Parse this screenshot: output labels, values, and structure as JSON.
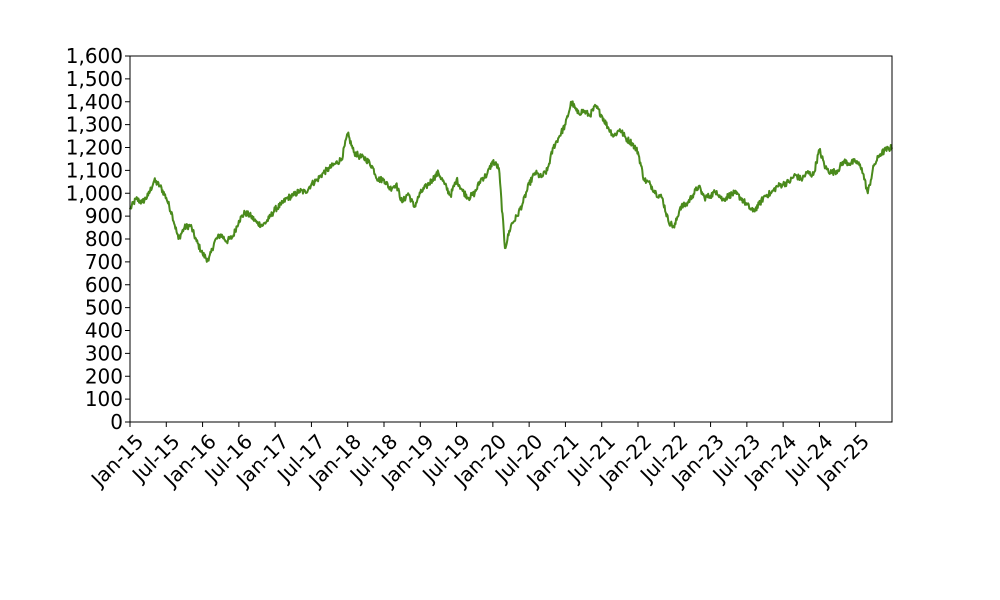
{
  "chart_data": {
    "type": "line",
    "title": "",
    "xlabel": "",
    "ylabel": "",
    "grid": false,
    "legend": "none",
    "ylim": [
      0,
      1600
    ],
    "xlim": [
      "2015-01",
      "2025-07"
    ],
    "y_ticks": [
      "0",
      "100",
      "200",
      "300",
      "400",
      "500",
      "600",
      "700",
      "800",
      "900",
      "1,000",
      "1,100",
      "1,200",
      "1,300",
      "1,400",
      "1,500",
      "1,600"
    ],
    "x_ticks": [
      {
        "date": "2015-01",
        "label": "Jan-15"
      },
      {
        "date": "2015-07",
        "label": "Jul-15"
      },
      {
        "date": "2016-01",
        "label": "Jan-16"
      },
      {
        "date": "2016-07",
        "label": "Jul-16"
      },
      {
        "date": "2017-01",
        "label": "Jan-17"
      },
      {
        "date": "2017-07",
        "label": "Jul-17"
      },
      {
        "date": "2018-01",
        "label": "Jan-18"
      },
      {
        "date": "2018-07",
        "label": "Jul-18"
      },
      {
        "date": "2019-01",
        "label": "Jan-19"
      },
      {
        "date": "2019-07",
        "label": "Jul-19"
      },
      {
        "date": "2020-01",
        "label": "Jan-20"
      },
      {
        "date": "2020-07",
        "label": "Jul-20"
      },
      {
        "date": "2021-01",
        "label": "Jan-21"
      },
      {
        "date": "2021-07",
        "label": "Jul-21"
      },
      {
        "date": "2022-01",
        "label": "Jan-22"
      },
      {
        "date": "2022-07",
        "label": "Jul-22"
      },
      {
        "date": "2023-01",
        "label": "Jan-23"
      },
      {
        "date": "2023-07",
        "label": "Jul-23"
      },
      {
        "date": "2024-01",
        "label": "Jan-24"
      },
      {
        "date": "2024-07",
        "label": "Jul-24"
      },
      {
        "date": "2025-01",
        "label": "Jan-25"
      }
    ],
    "series": [
      {
        "color": "#4a8a1c",
        "points": [
          [
            "2015-01",
            930
          ],
          [
            "2015-02",
            975
          ],
          [
            "2015-03",
            960
          ],
          [
            "2015-04",
            990
          ],
          [
            "2015-05",
            1055
          ],
          [
            "2015-06",
            1030
          ],
          [
            "2015-07",
            980
          ],
          [
            "2015-08",
            905
          ],
          [
            "2015-09",
            800
          ],
          [
            "2015-10",
            850
          ],
          [
            "2015-11",
            860
          ],
          [
            "2015-12",
            790
          ],
          [
            "2016-01",
            735
          ],
          [
            "2016-02",
            705
          ],
          [
            "2016-03",
            790
          ],
          [
            "2016-04",
            820
          ],
          [
            "2016-05",
            790
          ],
          [
            "2016-06",
            810
          ],
          [
            "2016-07",
            880
          ],
          [
            "2016-08",
            915
          ],
          [
            "2016-09",
            900
          ],
          [
            "2016-10",
            870
          ],
          [
            "2016-11",
            860
          ],
          [
            "2016-12",
            890
          ],
          [
            "2017-01",
            930
          ],
          [
            "2017-02",
            950
          ],
          [
            "2017-03",
            980
          ],
          [
            "2017-04",
            990
          ],
          [
            "2017-05",
            1010
          ],
          [
            "2017-06",
            1005
          ],
          [
            "2017-07",
            1040
          ],
          [
            "2017-08",
            1060
          ],
          [
            "2017-09",
            1090
          ],
          [
            "2017-10",
            1110
          ],
          [
            "2017-11",
            1130
          ],
          [
            "2017-12",
            1150
          ],
          [
            "2018-01",
            1260
          ],
          [
            "2018-02",
            1180
          ],
          [
            "2018-03",
            1160
          ],
          [
            "2018-04",
            1150
          ],
          [
            "2018-05",
            1120
          ],
          [
            "2018-06",
            1060
          ],
          [
            "2018-07",
            1060
          ],
          [
            "2018-08",
            1020
          ],
          [
            "2018-09",
            1040
          ],
          [
            "2018-10",
            960
          ],
          [
            "2018-11",
            1000
          ],
          [
            "2018-12",
            940
          ],
          [
            "2019-01",
            1000
          ],
          [
            "2019-02",
            1030
          ],
          [
            "2019-03",
            1060
          ],
          [
            "2019-04",
            1090
          ],
          [
            "2019-05",
            1040
          ],
          [
            "2019-06",
            990
          ],
          [
            "2019-07",
            1060
          ],
          [
            "2019-08",
            1010
          ],
          [
            "2019-09",
            980
          ],
          [
            "2019-10",
            1000
          ],
          [
            "2019-11",
            1060
          ],
          [
            "2019-12",
            1080
          ],
          [
            "2020-01",
            1140
          ],
          [
            "2020-02",
            1110
          ],
          [
            "2020-03",
            760
          ],
          [
            "2020-04",
            860
          ],
          [
            "2020-05",
            900
          ],
          [
            "2020-06",
            960
          ],
          [
            "2020-07",
            1040
          ],
          [
            "2020-08",
            1090
          ],
          [
            "2020-09",
            1070
          ],
          [
            "2020-10",
            1100
          ],
          [
            "2020-11",
            1200
          ],
          [
            "2020-12",
            1250
          ],
          [
            "2021-01",
            1300
          ],
          [
            "2021-02",
            1400
          ],
          [
            "2021-03",
            1350
          ],
          [
            "2021-04",
            1360
          ],
          [
            "2021-05",
            1340
          ],
          [
            "2021-06",
            1380
          ],
          [
            "2021-07",
            1340
          ],
          [
            "2021-08",
            1290
          ],
          [
            "2021-09",
            1250
          ],
          [
            "2021-10",
            1280
          ],
          [
            "2021-11",
            1240
          ],
          [
            "2021-12",
            1220
          ],
          [
            "2022-01",
            1180
          ],
          [
            "2022-02",
            1060
          ],
          [
            "2022-03",
            1040
          ],
          [
            "2022-04",
            1000
          ],
          [
            "2022-05",
            980
          ],
          [
            "2022-06",
            880
          ],
          [
            "2022-07",
            850
          ],
          [
            "2022-08",
            940
          ],
          [
            "2022-09",
            950
          ],
          [
            "2022-10",
            990
          ],
          [
            "2022-11",
            1030
          ],
          [
            "2022-12",
            980
          ],
          [
            "2023-01",
            990
          ],
          [
            "2023-02",
            1010
          ],
          [
            "2023-03",
            970
          ],
          [
            "2023-04",
            990
          ],
          [
            "2023-05",
            1000
          ],
          [
            "2023-06",
            980
          ],
          [
            "2023-07",
            950
          ],
          [
            "2023-08",
            920
          ],
          [
            "2023-09",
            950
          ],
          [
            "2023-10",
            990
          ],
          [
            "2023-11",
            1000
          ],
          [
            "2023-12",
            1030
          ],
          [
            "2024-01",
            1040
          ],
          [
            "2024-02",
            1050
          ],
          [
            "2024-03",
            1080
          ],
          [
            "2024-04",
            1060
          ],
          [
            "2024-05",
            1090
          ],
          [
            "2024-06",
            1080
          ],
          [
            "2024-07",
            1190
          ],
          [
            "2024-08",
            1110
          ],
          [
            "2024-09",
            1090
          ],
          [
            "2024-10",
            1100
          ],
          [
            "2024-11",
            1140
          ],
          [
            "2024-12",
            1130
          ],
          [
            "2025-01",
            1140
          ],
          [
            "2025-02",
            1110
          ],
          [
            "2025-03",
            1000
          ],
          [
            "2025-04",
            1120
          ],
          [
            "2025-05",
            1170
          ],
          [
            "2025-06",
            1190
          ],
          [
            "2025-07",
            1200
          ]
        ]
      }
    ]
  }
}
